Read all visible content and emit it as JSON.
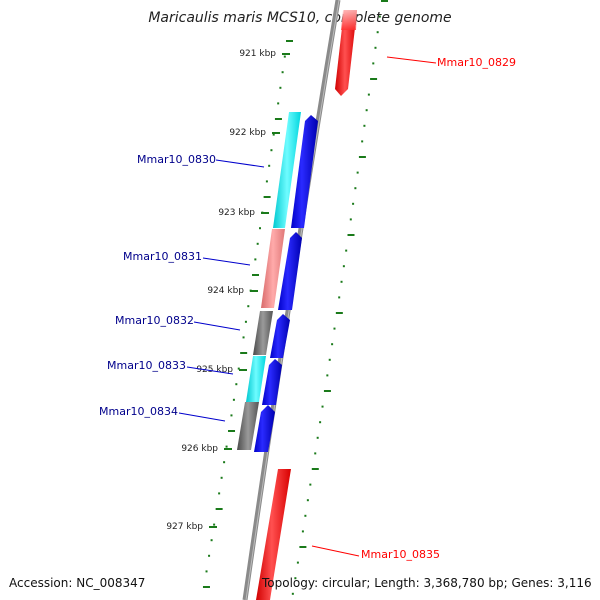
{
  "title": "Maricaulis maris MCS10, complete genome",
  "footer": {
    "accession": "Accession: NC_008347",
    "summary": "Topology: circular; Length: 3,368,780 bp; Genes: 3,116"
  },
  "ruler": {
    "labels": [
      "921 kbp",
      "922 kbp",
      "923 kbp",
      "924 kbp",
      "925 kbp",
      "926 kbp",
      "927 kbp"
    ]
  },
  "genes": [
    {
      "id": "Mmar10_0829",
      "color": "#ff0000",
      "strand": "reverse"
    },
    {
      "id": "Mmar10_0830",
      "color": "#00008b",
      "strand": "forward"
    },
    {
      "id": "Mmar10_0831",
      "color": "#00008b",
      "strand": "forward"
    },
    {
      "id": "Mmar10_0832",
      "color": "#00008b",
      "strand": "forward"
    },
    {
      "id": "Mmar10_0833",
      "color": "#00008b",
      "strand": "forward"
    },
    {
      "id": "Mmar10_0834",
      "color": "#00008b",
      "strand": "forward"
    },
    {
      "id": "Mmar10_0835",
      "color": "#ff0000",
      "strand": "reverse"
    }
  ],
  "colors": {
    "backbone": "#888888",
    "forward_feature": "#0000ff",
    "reverse_feature": "#ff0000",
    "cog_cyan": "#00e5ee",
    "cog_salmon": "#f08080",
    "cog_gray": "#666666",
    "ticks": "#1a7a1a"
  }
}
